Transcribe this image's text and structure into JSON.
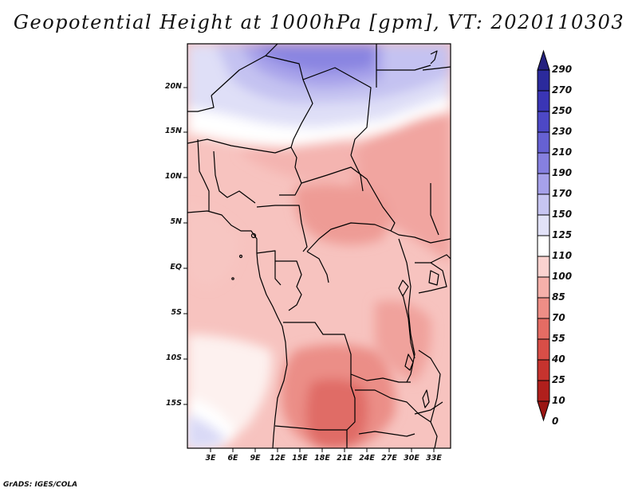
{
  "title": "Geopotential Height at 1000hPa [gpm], VT: 2020110303",
  "latitude_labels": [
    "20N",
    "15N",
    "10N",
    "5N",
    "EQ",
    "5S",
    "10S",
    "15S"
  ],
  "longitude_labels": [
    "3E",
    "6E",
    "9E",
    "12E",
    "15E",
    "18E",
    "21E",
    "24E",
    "27E",
    "30E",
    "33E"
  ],
  "colorbar": {
    "levels": [
      "290",
      "270",
      "250",
      "230",
      "210",
      "190",
      "170",
      "150",
      "125",
      "110",
      "100",
      "85",
      "70",
      "55",
      "40",
      "25",
      "10",
      "0"
    ],
    "colors": [
      "#25217f",
      "#2b2a9c",
      "#3a35b5",
      "#4d48c6",
      "#6661d3",
      "#8680e0",
      "#a6a1ea",
      "#c7c5f2",
      "#e2e2f8",
      "#ffffff",
      "#fbd3d0",
      "#f5b0aa",
      "#ee8e86",
      "#e56c64",
      "#d84e47",
      "#c6332e",
      "#b01f1c",
      "#9a1512"
    ]
  },
  "credit": "GrADS: IGES/COLA"
}
